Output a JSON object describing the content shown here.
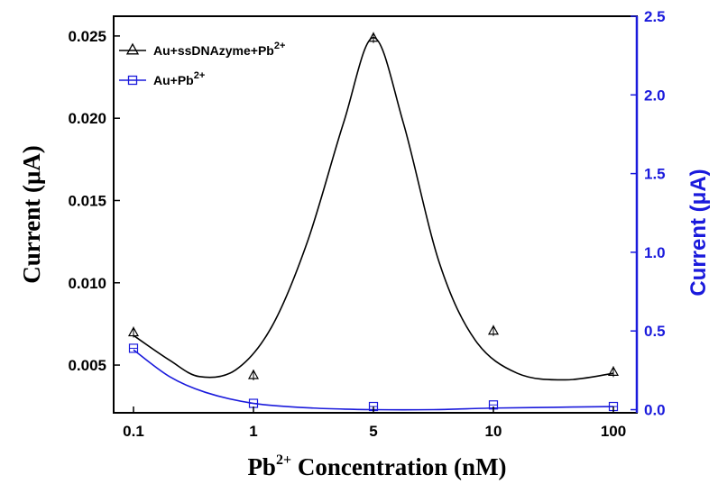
{
  "chart_data": {
    "type": "line",
    "title": "",
    "xlabel": "Pb",
    "xlabel_sup": "2+",
    "xlabel_rest": " Concentration (nM)",
    "ylabel_left": "Current (μA)",
    "ylabel_right": "Current (μA)",
    "categories": [
      "0.1",
      "1",
      "5",
      "10",
      "100"
    ],
    "y_left": {
      "lim": [
        0.0021,
        0.0262
      ],
      "ticks": [
        "0.005",
        "0.010",
        "0.015",
        "0.020",
        "0.025"
      ],
      "tick_values": [
        0.005,
        0.01,
        0.015,
        0.02,
        0.025
      ]
    },
    "y_right": {
      "lim": [
        -0.02,
        2.5
      ],
      "ticks": [
        "0.0",
        "0.5",
        "1.0",
        "1.5",
        "2.0",
        "2.5"
      ],
      "tick_values": [
        0.0,
        0.5,
        1.0,
        1.5,
        2.0,
        2.5
      ],
      "color": "#1a1adc"
    },
    "grid": false,
    "legend_position": "top-left",
    "series": [
      {
        "name": "Au+ssDNAzyme+Pb",
        "name_sup": "2+",
        "axis": "left",
        "marker": "triangle",
        "color": "#000000",
        "values": [
          0.007,
          0.0044,
          0.0249,
          0.0071,
          0.0046
        ],
        "curve": [
          [
            0,
            0.0068
          ],
          [
            0.3,
            0.0053
          ],
          [
            0.55,
            0.0043
          ],
          [
            0.85,
            0.0047
          ],
          [
            1.15,
            0.0073
          ],
          [
            1.45,
            0.0125
          ],
          [
            1.75,
            0.0197
          ],
          [
            2.0,
            0.0249
          ],
          [
            2.25,
            0.0197
          ],
          [
            2.55,
            0.0112
          ],
          [
            2.85,
            0.0065
          ],
          [
            3.2,
            0.0045
          ],
          [
            3.6,
            0.0041
          ],
          [
            4.0,
            0.0045
          ]
        ]
      },
      {
        "name": "Au+Pb",
        "name_sup": "2+",
        "axis": "right",
        "marker": "square",
        "color": "#1a1adc",
        "values": [
          0.39,
          0.04,
          0.02,
          0.03,
          0.02
        ],
        "curve": [
          [
            0,
            0.38
          ],
          [
            0.3,
            0.21
          ],
          [
            0.6,
            0.11
          ],
          [
            1.0,
            0.04
          ],
          [
            1.5,
            0.01
          ],
          [
            2.0,
            0.0
          ],
          [
            2.5,
            0.0
          ],
          [
            3.0,
            0.01
          ],
          [
            3.5,
            0.015
          ],
          [
            4.0,
            0.02
          ]
        ]
      }
    ]
  }
}
